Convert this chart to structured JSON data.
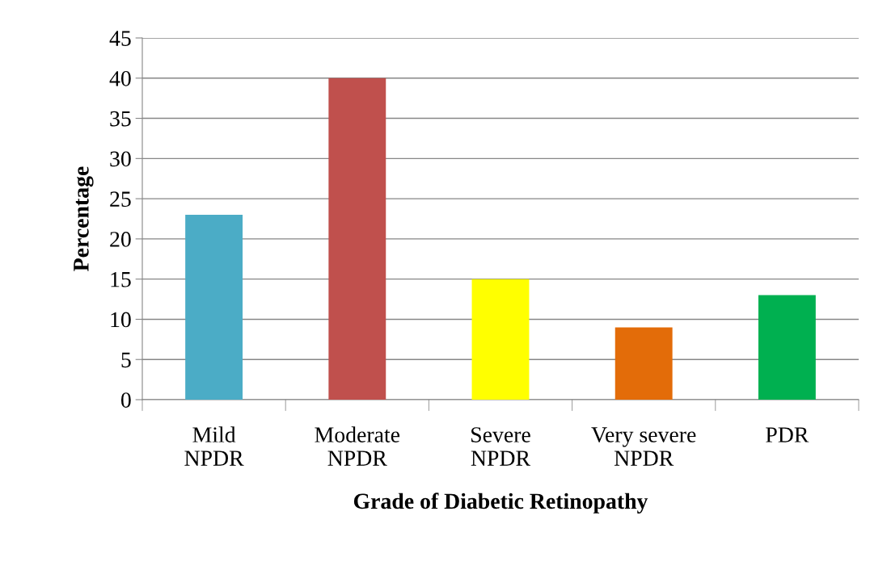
{
  "chart_data": {
    "type": "bar",
    "xlabel": "Grade of Diabetic Retinopathy",
    "ylabel": "Percentage",
    "categories": [
      "Mild\nNPDR",
      "Moderate\nNPDR",
      "Severe\nNPDR",
      "Very severe\nNPDR",
      "PDR"
    ],
    "values": [
      23,
      40,
      15,
      9,
      13
    ],
    "colors": [
      "#4bacc6",
      "#c0504d",
      "#ffff00",
      "#e36c09",
      "#00b050"
    ],
    "ylim": [
      0,
      45
    ],
    "yticks": [
      0,
      5,
      10,
      15,
      20,
      25,
      30,
      35,
      40,
      45
    ],
    "grid": "y",
    "legend": false
  }
}
